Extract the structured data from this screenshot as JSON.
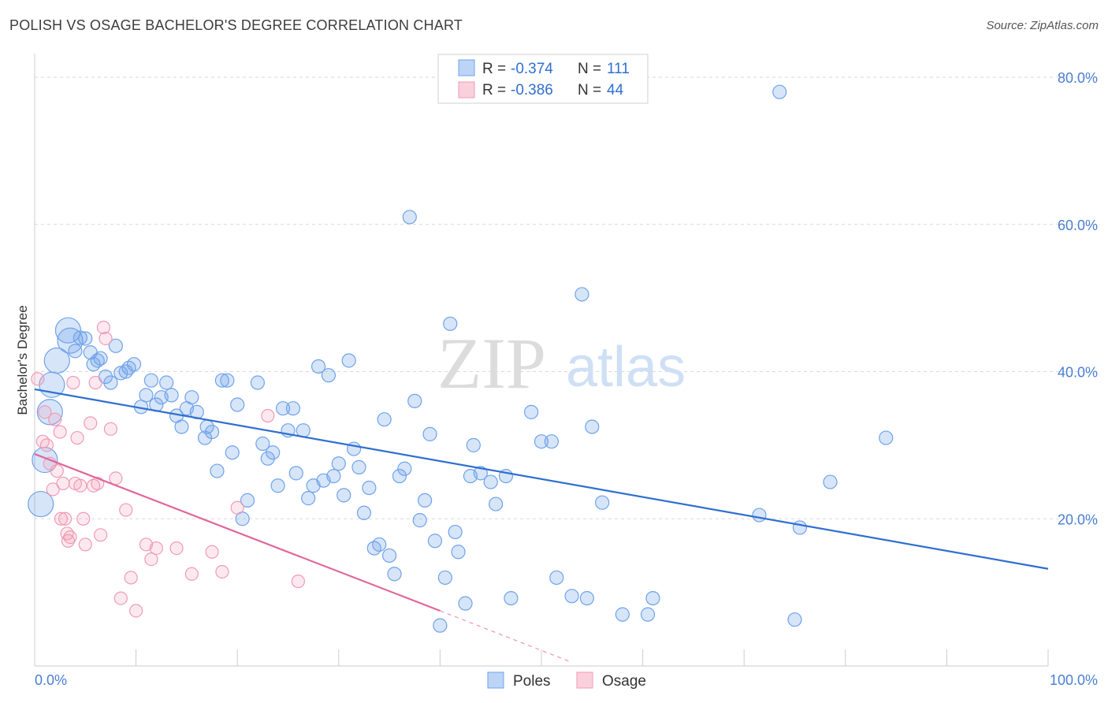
{
  "title": "POLISH VS OSAGE BACHELOR'S DEGREE CORRELATION CHART",
  "source": "Source: ZipAtlas.com",
  "watermark": {
    "part1": "ZIP",
    "part2": "atlas"
  },
  "colors": {
    "poles": "#6fa3ea",
    "osage": "#f09ab5",
    "poles_line": "#2f6fd0",
    "osage_line": "#e0679a",
    "axis_text": "#4a7fd0"
  },
  "chart_data": {
    "type": "scatter",
    "title": "POLISH VS OSAGE BACHELOR'S DEGREE CORRELATION CHART",
    "xlabel": "",
    "ylabel": "Bachelor's Degree",
    "xlim": [
      0,
      100
    ],
    "ylim": [
      0,
      82
    ],
    "x_tick_labels": [
      "0.0%",
      "100.0%"
    ],
    "y_ticks": [
      20,
      40,
      60,
      80
    ],
    "y_tick_labels": [
      "20.0%",
      "40.0%",
      "60.0%",
      "80.0%"
    ],
    "grid": true,
    "legend_placement": "top-center",
    "stats": [
      {
        "series": "Poles",
        "r_label": "R =",
        "r": "-0.374",
        "n_label": "N =",
        "n": "111"
      },
      {
        "series": "Osage",
        "r_label": "R =",
        "r": "-0.386",
        "n_label": "N =",
        "n": "44"
      }
    ],
    "series": [
      {
        "name": "Poles",
        "trend": {
          "x": [
            0,
            100
          ],
          "y": [
            37.6,
            13.2
          ]
        },
        "points": [
          [
            3.3,
            45.6
          ],
          [
            3.5,
            44.2
          ],
          [
            2.2,
            41.5
          ],
          [
            1.7,
            38.2
          ],
          [
            1.5,
            34.5
          ],
          [
            1.0,
            28.0
          ],
          [
            0.6,
            22.0
          ],
          [
            4.0,
            42.8
          ],
          [
            4.5,
            44.6
          ],
          [
            5.0,
            44.5
          ],
          [
            5.5,
            42.6
          ],
          [
            5.8,
            41.0
          ],
          [
            6.2,
            41.5
          ],
          [
            6.5,
            41.8
          ],
          [
            7.0,
            39.3
          ],
          [
            7.5,
            38.5
          ],
          [
            8.0,
            43.5
          ],
          [
            8.5,
            39.8
          ],
          [
            9.0,
            40.0
          ],
          [
            9.3,
            40.5
          ],
          [
            9.8,
            41.0
          ],
          [
            10.5,
            35.2
          ],
          [
            11.0,
            36.8
          ],
          [
            11.5,
            38.8
          ],
          [
            12.0,
            35.5
          ],
          [
            12.5,
            36.5
          ],
          [
            13.0,
            38.5
          ],
          [
            13.5,
            36.8
          ],
          [
            14.0,
            34.0
          ],
          [
            14.5,
            32.5
          ],
          [
            15.0,
            35.0
          ],
          [
            15.5,
            36.5
          ],
          [
            16.0,
            34.5
          ],
          [
            16.8,
            31.0
          ],
          [
            17.0,
            32.5
          ],
          [
            17.5,
            31.8
          ],
          [
            18.0,
            26.5
          ],
          [
            18.5,
            38.8
          ],
          [
            19.0,
            38.8
          ],
          [
            19.5,
            29.0
          ],
          [
            20.0,
            35.5
          ],
          [
            20.5,
            20.0
          ],
          [
            21.0,
            22.5
          ],
          [
            22.0,
            38.5
          ],
          [
            22.5,
            30.2
          ],
          [
            23.0,
            28.2
          ],
          [
            23.5,
            29.0
          ],
          [
            24.0,
            24.5
          ],
          [
            24.5,
            35.0
          ],
          [
            25.0,
            32.0
          ],
          [
            25.5,
            35.0
          ],
          [
            25.8,
            26.2
          ],
          [
            26.5,
            32.0
          ],
          [
            27.0,
            22.8
          ],
          [
            27.5,
            24.5
          ],
          [
            28.0,
            40.7
          ],
          [
            28.5,
            25.2
          ],
          [
            29.0,
            39.5
          ],
          [
            29.5,
            25.8
          ],
          [
            30.0,
            27.5
          ],
          [
            30.5,
            23.2
          ],
          [
            31.0,
            41.5
          ],
          [
            31.5,
            29.5
          ],
          [
            32.0,
            27.0
          ],
          [
            32.5,
            20.8
          ],
          [
            33.0,
            24.2
          ],
          [
            33.5,
            16.0
          ],
          [
            34.0,
            16.5
          ],
          [
            34.5,
            33.5
          ],
          [
            35.0,
            15.0
          ],
          [
            35.5,
            12.5
          ],
          [
            36.0,
            25.8
          ],
          [
            36.5,
            26.8
          ],
          [
            37.0,
            61.0
          ],
          [
            37.5,
            36.0
          ],
          [
            38.0,
            19.8
          ],
          [
            38.5,
            22.5
          ],
          [
            39.0,
            31.5
          ],
          [
            39.5,
            17.0
          ],
          [
            40.0,
            5.5
          ],
          [
            40.5,
            12.0
          ],
          [
            41.0,
            46.5
          ],
          [
            41.5,
            18.2
          ],
          [
            41.8,
            15.5
          ],
          [
            42.5,
            8.5
          ],
          [
            43.0,
            25.8
          ],
          [
            43.3,
            30.0
          ],
          [
            44.0,
            26.2
          ],
          [
            45.0,
            25.0
          ],
          [
            45.5,
            22.0
          ],
          [
            46.5,
            25.8
          ],
          [
            47.0,
            9.2
          ],
          [
            49.0,
            34.5
          ],
          [
            50.0,
            30.5
          ],
          [
            51.0,
            30.5
          ],
          [
            51.5,
            12.0
          ],
          [
            53.0,
            9.5
          ],
          [
            54.0,
            50.5
          ],
          [
            54.5,
            9.2
          ],
          [
            55.0,
            32.5
          ],
          [
            56.0,
            22.2
          ],
          [
            58.0,
            7.0
          ],
          [
            60.5,
            7.0
          ],
          [
            61.0,
            9.2
          ],
          [
            71.5,
            20.5
          ],
          [
            73.5,
            78.0
          ],
          [
            75.0,
            6.3
          ],
          [
            75.5,
            18.8
          ],
          [
            78.5,
            25.0
          ],
          [
            84.0,
            31.0
          ]
        ],
        "large_points": [
          [
            3.3,
            45.6
          ],
          [
            2.2,
            41.5
          ],
          [
            1.7,
            38.2
          ],
          [
            1.5,
            34.5
          ],
          [
            1.0,
            28.0
          ],
          [
            0.6,
            22.0
          ],
          [
            3.5,
            44.2
          ]
        ]
      },
      {
        "name": "Osage",
        "trend": {
          "x": [
            0,
            40
          ],
          "y": [
            28.8,
            7.5
          ],
          "dashed_to": {
            "x": 53,
            "y": 0.5
          }
        },
        "points": [
          [
            0.3,
            39.0
          ],
          [
            0.8,
            30.5
          ],
          [
            1.2,
            30.0
          ],
          [
            1.5,
            27.5
          ],
          [
            1.8,
            24.0
          ],
          [
            2.0,
            33.5
          ],
          [
            2.2,
            26.5
          ],
          [
            2.5,
            31.8
          ],
          [
            2.8,
            24.8
          ],
          [
            3.0,
            20.0
          ],
          [
            3.2,
            18.0
          ],
          [
            3.5,
            17.5
          ],
          [
            3.8,
            38.5
          ],
          [
            4.0,
            24.8
          ],
          [
            4.2,
            31.0
          ],
          [
            4.5,
            24.5
          ],
          [
            4.8,
            20.0
          ],
          [
            5.0,
            16.5
          ],
          [
            5.5,
            33.0
          ],
          [
            5.8,
            24.5
          ],
          [
            6.0,
            38.5
          ],
          [
            6.2,
            24.8
          ],
          [
            6.5,
            17.8
          ],
          [
            6.8,
            46.0
          ],
          [
            7.0,
            44.5
          ],
          [
            7.5,
            32.2
          ],
          [
            8.0,
            25.5
          ],
          [
            8.5,
            9.2
          ],
          [
            9.0,
            21.2
          ],
          [
            9.5,
            12.0
          ],
          [
            10.0,
            7.5
          ],
          [
            11.0,
            16.5
          ],
          [
            11.5,
            14.5
          ],
          [
            12.0,
            16.0
          ],
          [
            14.0,
            16.0
          ],
          [
            15.5,
            12.5
          ],
          [
            17.5,
            15.5
          ],
          [
            18.5,
            12.8
          ],
          [
            20.0,
            21.5
          ],
          [
            23.0,
            34.0
          ],
          [
            26.0,
            11.5
          ],
          [
            1.0,
            34.5
          ],
          [
            2.6,
            20.0
          ],
          [
            3.3,
            17.0
          ]
        ]
      }
    ]
  },
  "legend": {
    "poles": "Poles",
    "osage": "Osage"
  }
}
